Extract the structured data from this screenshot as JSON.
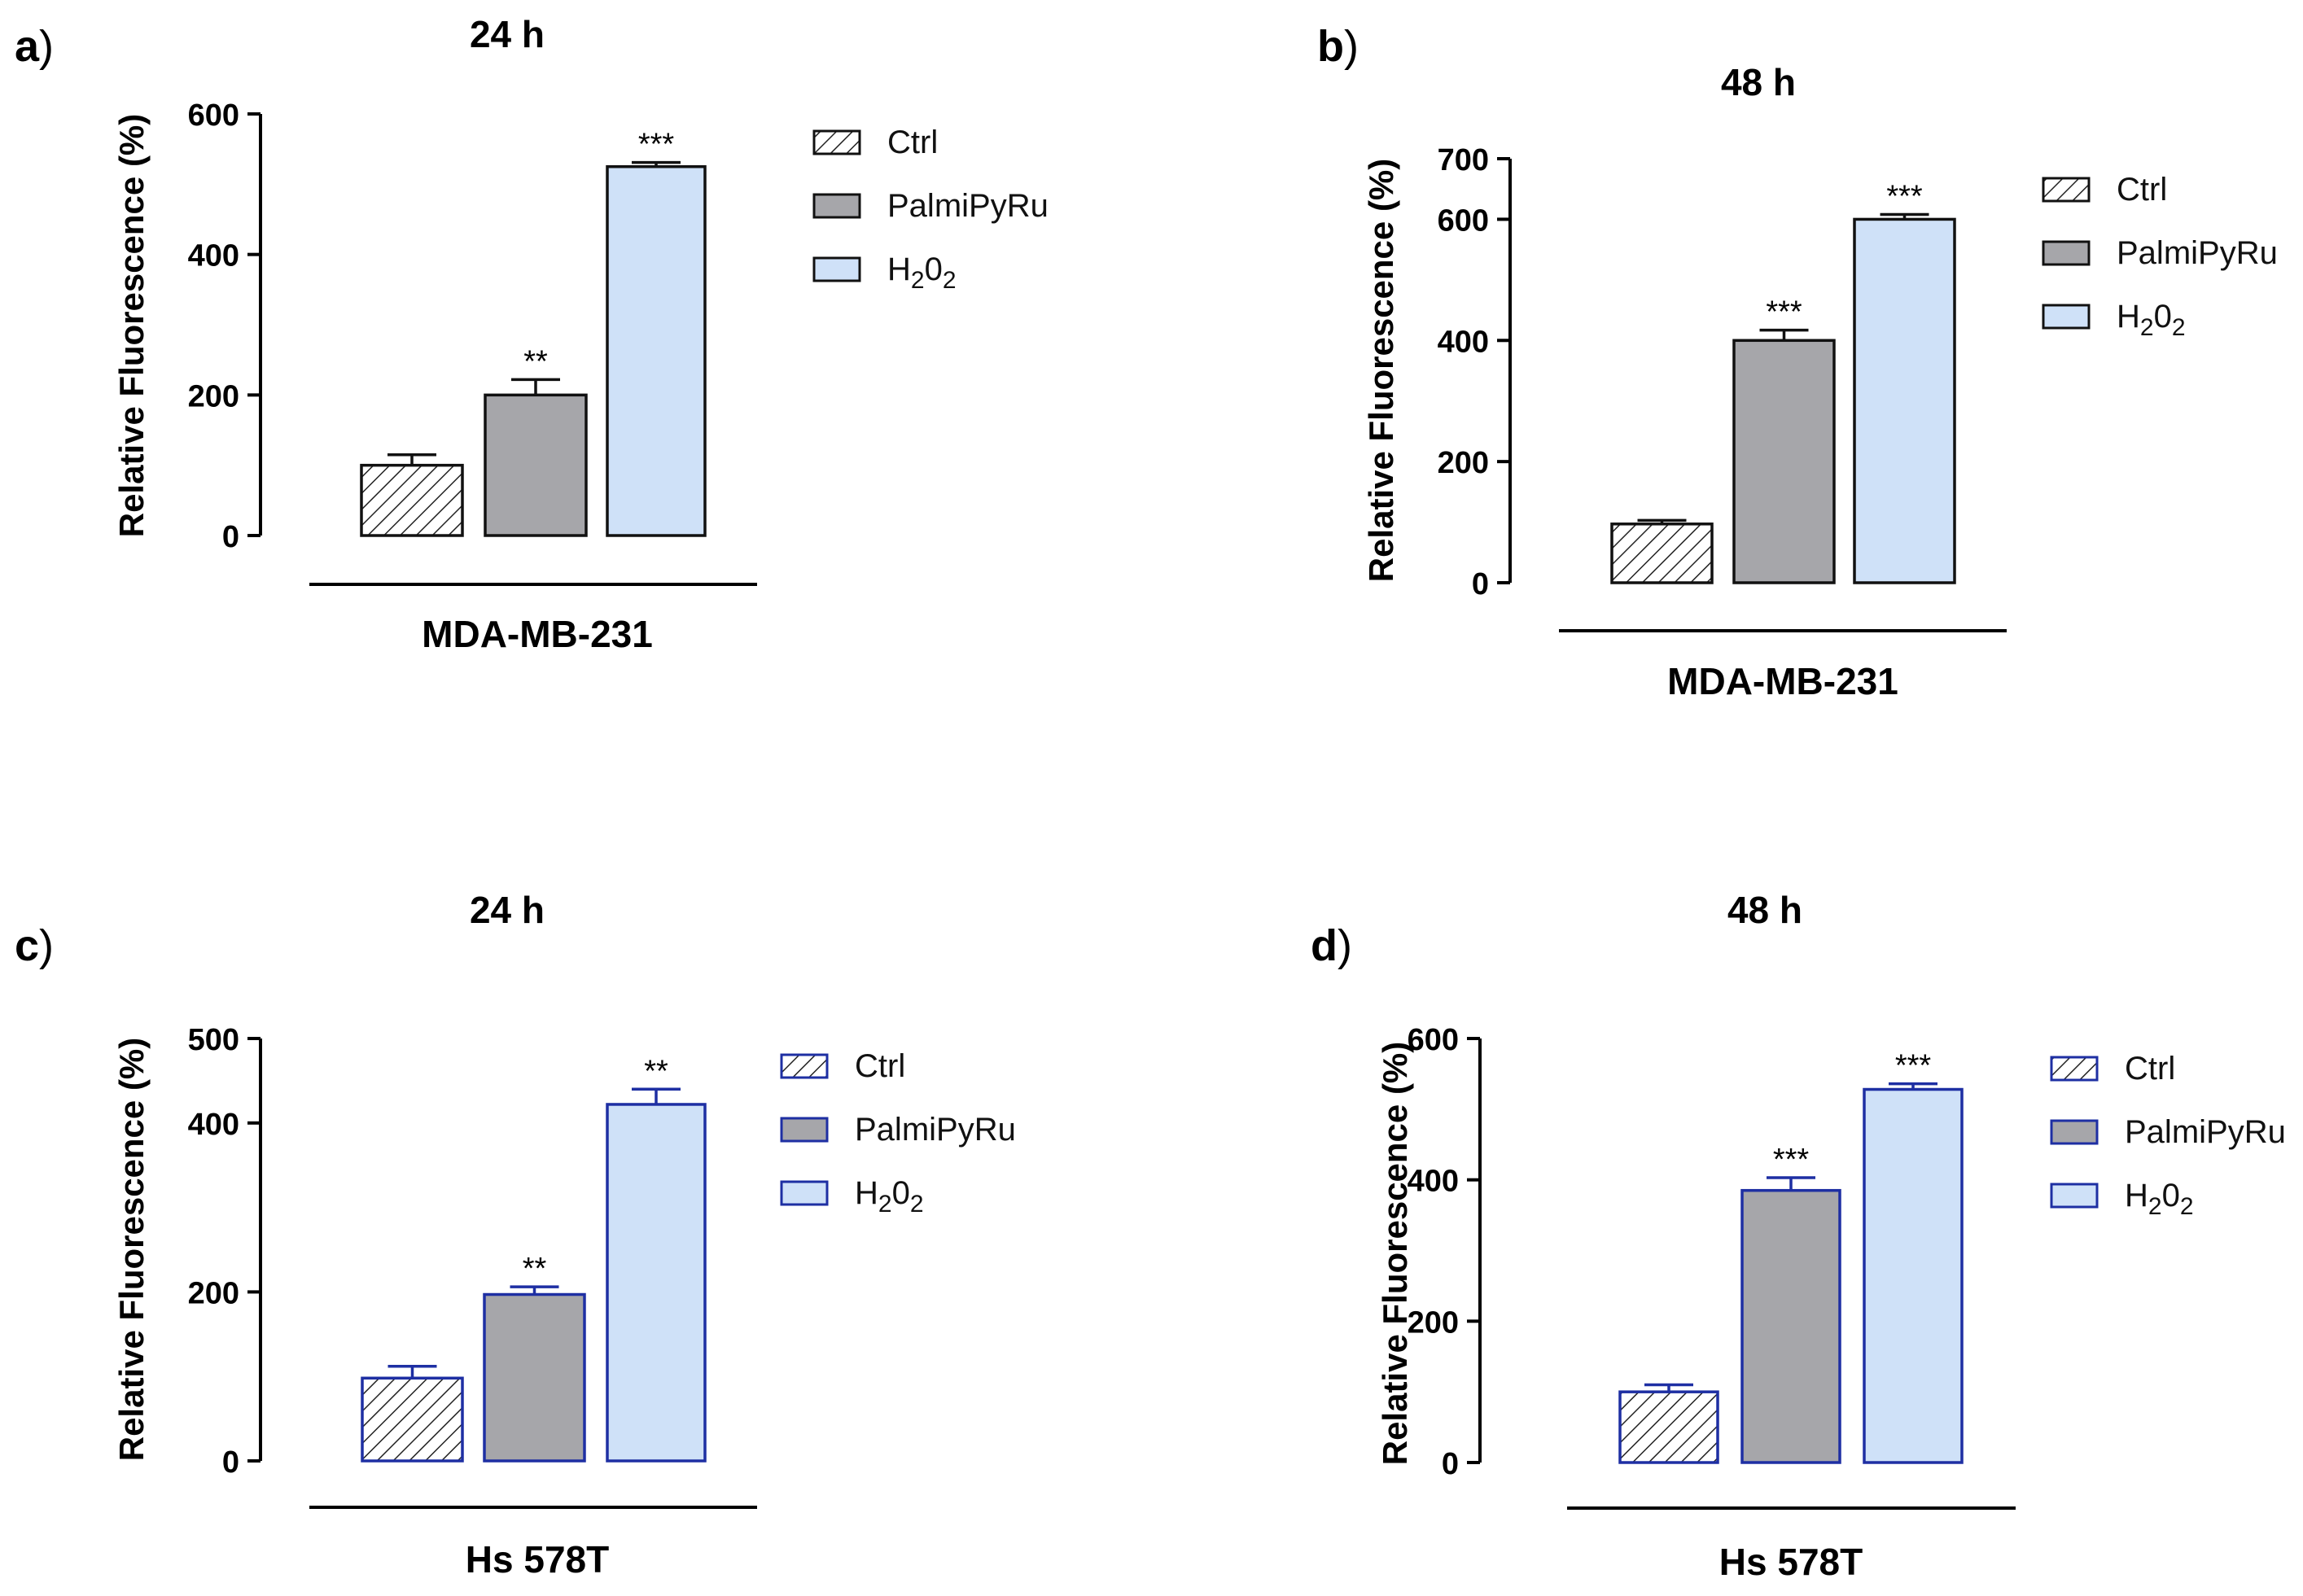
{
  "figure": {
    "colors": {
      "axis": "#000000",
      "ctrl_fill": "#ffffff",
      "ctrl_hatch": "#000000",
      "palmi_fill": "#a6a6aa",
      "h2o2_fill": "#cfe1f8",
      "edge_dark": "#111111",
      "edge_blue": "#1e2fa3"
    },
    "legend_items": [
      {
        "label": "Ctrl",
        "sub": "",
        "tail": "",
        "series_index": 0
      },
      {
        "label": "PalmiPyRu",
        "sub": "",
        "tail": "",
        "series_index": 1
      },
      {
        "label": "H",
        "sub": "2",
        "tail": "0",
        "sub2": "2",
        "series_index": 2
      }
    ]
  },
  "chart_data": [
    {
      "panel_letter": "a",
      "paren": ")",
      "type": "bar",
      "title": "24 h",
      "ylabel": "Relative Fluorescence (%)",
      "xlabel": "MDA-MB-231",
      "ylim": [
        0,
        600
      ],
      "yticks": [
        0,
        200,
        400,
        600
      ],
      "categories": [
        "Ctrl",
        "PalmiPyRu",
        "H2O2"
      ],
      "values": [
        100,
        200,
        525
      ],
      "errors": [
        15,
        22,
        6
      ],
      "significance": [
        "",
        "**",
        "***"
      ],
      "edge_style": "dark"
    },
    {
      "panel_letter": "b",
      "paren": ")",
      "type": "bar",
      "title": "48 h",
      "ylabel": "Relative Fluorescence (%)",
      "xlabel": "MDA-MB-231",
      "ylim": [
        0,
        700
      ],
      "yticks": [
        0,
        200,
        400,
        600,
        700
      ],
      "categories": [
        "Ctrl",
        "PalmiPyRu",
        "H2O2"
      ],
      "values": [
        97,
        400,
        600
      ],
      "errors": [
        6,
        17,
        8
      ],
      "significance": [
        "",
        "***",
        "***"
      ],
      "edge_style": "dark"
    },
    {
      "panel_letter": "c",
      "paren": ")",
      "type": "bar",
      "title": "24 h",
      "ylabel": "Relative Fluorescence (%)",
      "xlabel": "Hs 578T",
      "ylim": [
        0,
        500
      ],
      "yticks": [
        0,
        200,
        400,
        500
      ],
      "categories": [
        "Ctrl",
        "PalmiPyRu",
        "H2O2"
      ],
      "values": [
        98,
        197,
        422
      ],
      "errors": [
        14,
        9,
        18
      ],
      "significance": [
        "",
        "**",
        "**"
      ],
      "edge_style": "blue"
    },
    {
      "panel_letter": "d",
      "paren": ")",
      "type": "bar",
      "title": "48 h",
      "ylabel": "Relative Fluorescence (%)",
      "xlabel": "Hs 578T",
      "ylim": [
        0,
        600
      ],
      "yticks": [
        0,
        200,
        400,
        600
      ],
      "categories": [
        "Ctrl",
        "PalmiPyRu",
        "H2O2"
      ],
      "values": [
        100,
        385,
        528
      ],
      "errors": [
        10,
        18,
        8
      ],
      "significance": [
        "",
        "***",
        "***"
      ],
      "edge_style": "blue"
    }
  ]
}
